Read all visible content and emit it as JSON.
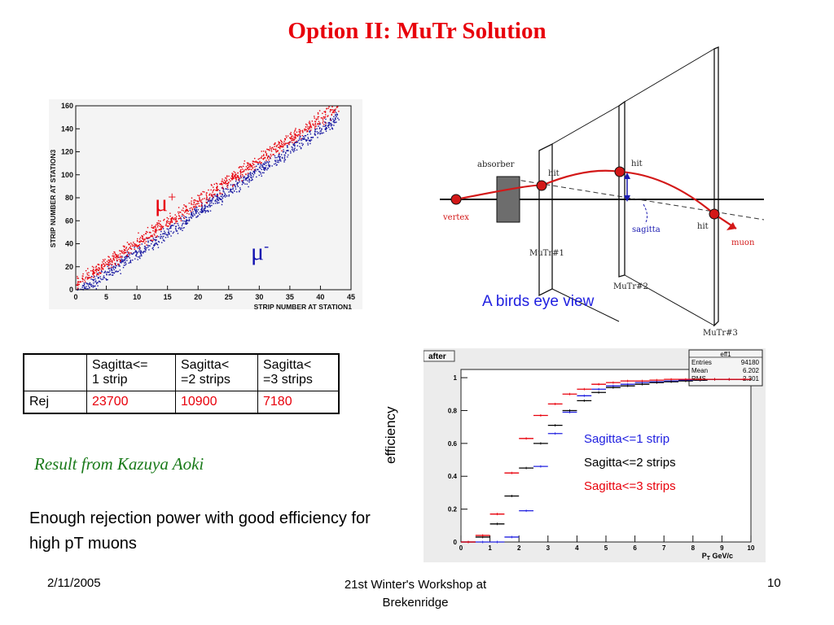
{
  "title": "Option II:  MuTr Solution",
  "scatter": {
    "y_ticks": [
      "0",
      "20",
      "40",
      "60",
      "80",
      "100",
      "120",
      "140",
      "160"
    ],
    "x_ticks": [
      "0",
      "5",
      "10",
      "15",
      "20",
      "25",
      "30",
      "35",
      "40",
      "45"
    ],
    "xlabel": "STRIP NUMBER AT STATION1",
    "ylabel": "STRIP NUMBER AT STATION3",
    "mu_plus_base": "μ",
    "mu_plus_sup": "+",
    "mu_minus_base": "μ",
    "mu_minus_sup": "-",
    "colors": {
      "mu_plus": "#e8000b",
      "mu_minus": "#1515a0"
    }
  },
  "birds_eye": {
    "caption": "A birds eye view",
    "labels": {
      "absorber": "absorber",
      "hit1": "hit",
      "hit2": "hit",
      "hit3": "hit",
      "vertex": "vertex",
      "sagitta": "sagitta",
      "muon": "muon",
      "station1": "MuTr#1",
      "station2": "MuTr#2",
      "station3": "MuTr#3"
    }
  },
  "table": {
    "headers": [
      "",
      "Sagitta<=\n1 strip",
      "Sagitta<\n=2 strips",
      "Sagitta<\n=3 strips"
    ],
    "row_label": "Rej",
    "values": [
      "23700",
      "10900",
      "7180"
    ]
  },
  "result_note": "Result from Kazuya Aoki",
  "body_text": "Enough rejection power with good efficiency for high pT muons",
  "efficiency_plot": {
    "tab_label": "after",
    "stats": {
      "name": "eff1",
      "entries_label": "Entries",
      "entries": "94180",
      "mean_label": "Mean",
      "mean": "6.202",
      "rms_label": "RMS",
      "rms": "2.301"
    },
    "ylabel": "efficiency",
    "xlabel": "P",
    "xlabel_sub": "T",
    "xlabel_unit": " GeV/c",
    "y_ticks": [
      "0",
      "0.2",
      "0.4",
      "0.6",
      "0.8",
      "1"
    ],
    "x_ticks": [
      "0",
      "1",
      "2",
      "3",
      "4",
      "5",
      "6",
      "7",
      "8",
      "9",
      "10"
    ],
    "legend": [
      {
        "label": "Sagitta<=1 strip",
        "color": "#2020e0"
      },
      {
        "label": "Sagitta<=2 strips",
        "color": "#000000"
      },
      {
        "label": "Sagitta<=3 strips",
        "color": "#e8000b"
      }
    ]
  },
  "chart_data": {
    "type": "scatter",
    "x": [
      0.25,
      0.75,
      1.25,
      1.75,
      2.25,
      2.75,
      3.25,
      3.75,
      4.25,
      4.75,
      5.25,
      5.75,
      6.25,
      6.75,
      7.25,
      7.75,
      8.25,
      8.75,
      9.25,
      9.75
    ],
    "series": [
      {
        "name": "Sagitta<=1 strip",
        "color": "#2020e0",
        "values": [
          0.0,
          0.0,
          0.0,
          0.03,
          0.19,
          0.46,
          0.66,
          0.79,
          0.89,
          0.93,
          0.95,
          0.96,
          0.97,
          0.975,
          0.98,
          0.985,
          0.985,
          0.99,
          0.99,
          0.99
        ]
      },
      {
        "name": "Sagitta<=2 strips",
        "color": "#000000",
        "values": [
          0.0,
          0.03,
          0.11,
          0.28,
          0.45,
          0.6,
          0.71,
          0.8,
          0.86,
          0.91,
          0.94,
          0.95,
          0.96,
          0.97,
          0.975,
          0.98,
          0.985,
          0.99,
          0.99,
          0.99
        ]
      },
      {
        "name": "Sagitta<=3 strips",
        "color": "#e8000b",
        "values": [
          0.0,
          0.04,
          0.17,
          0.42,
          0.63,
          0.77,
          0.84,
          0.9,
          0.93,
          0.96,
          0.97,
          0.98,
          0.98,
          0.985,
          0.99,
          0.99,
          0.99,
          0.99,
          0.99,
          0.99
        ]
      }
    ],
    "xlabel": "PT GeV/c",
    "ylabel": "efficiency",
    "xlim": [
      0,
      10
    ],
    "ylim": [
      0,
      1.05
    ],
    "legend_placement": "center-right"
  },
  "footer": {
    "date": "2/11/2005",
    "event_line1": "21st Winter's Workshop at",
    "event_line2": "Brekenridge",
    "page": "10"
  }
}
